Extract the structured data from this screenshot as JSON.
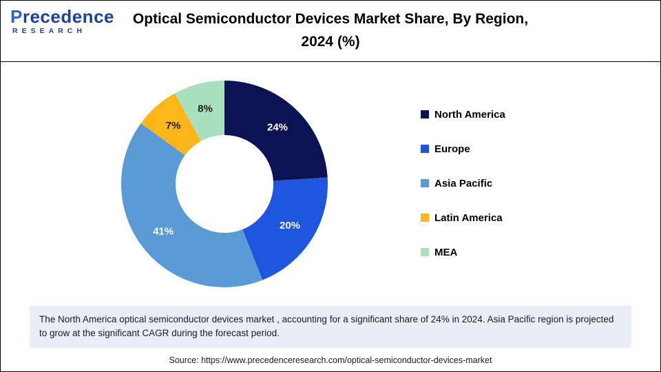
{
  "header": {
    "logo": {
      "name_first_letter": "P",
      "name_rest": "recedence",
      "sub": "RESEARCH"
    },
    "title_line1": "Optical Semiconductor Devices Market Share, By Region,",
    "title_line2": "2024 (%)"
  },
  "chart_data": {
    "type": "pie",
    "subtype": "donut",
    "title": "Optical Semiconductor Devices Market Share, By Region, 2024 (%)",
    "categories": [
      "North America",
      "Europe",
      "Asia Pacific",
      "Latin America",
      "MEA"
    ],
    "values": [
      24,
      20,
      41,
      7,
      8
    ],
    "value_suffix": "%",
    "colors": [
      "#0b1354",
      "#1f56df",
      "#5b9bd5",
      "#fcb61a",
      "#a8e0bd"
    ],
    "slice_label_colors": [
      "#ffffff",
      "#ffffff",
      "#ffffff",
      "#1a1a1a",
      "#1a1a1a"
    ],
    "legend_position": "right",
    "start_angle_deg": 0,
    "direction": "clockwise",
    "inner_radius_ratio": 0.47
  },
  "note": {
    "text": "The North America optical semiconductor devices market , accounting for a significant share of 24% in 2024. Asia Pacific region is projected to grow at the significant CAGR during the forecast period."
  },
  "source": {
    "text": "Source: https://www.precedenceresearch.com/optical-semiconductor-devices-market"
  }
}
